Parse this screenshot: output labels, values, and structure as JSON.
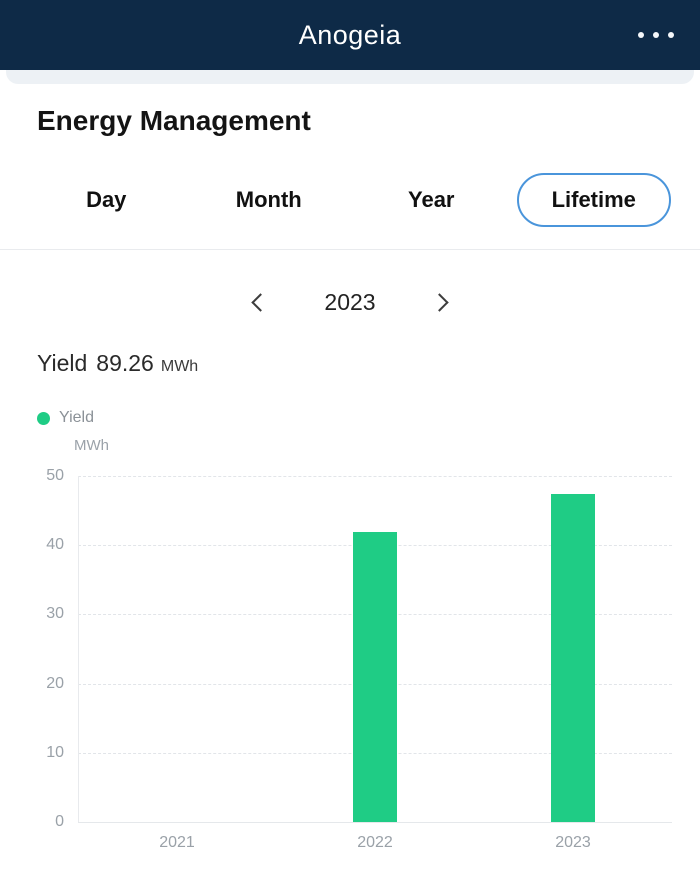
{
  "header": {
    "title": "Anogeia"
  },
  "page": {
    "title": "Energy Management"
  },
  "tabs": {
    "items": [
      {
        "label": "Day",
        "selected": false
      },
      {
        "label": "Month",
        "selected": false
      },
      {
        "label": "Year",
        "selected": false
      },
      {
        "label": "Lifetime",
        "selected": true
      }
    ]
  },
  "year_nav": {
    "value": "2023"
  },
  "summary": {
    "label": "Yield",
    "value": "89.26",
    "unit": "MWh"
  },
  "legend": {
    "items": [
      {
        "label": "Yield",
        "color": "#1fcc85"
      }
    ]
  },
  "chart_data": {
    "type": "bar",
    "title": "",
    "categories": [
      "2021",
      "2022",
      "2023"
    ],
    "series": [
      {
        "name": "Yield",
        "color": "#1fcc85",
        "values": [
          0,
          41.88,
          47.38
        ]
      }
    ],
    "xlabel": "",
    "ylabel": "MWh",
    "ylim": [
      0,
      50
    ],
    "yticks": [
      0,
      10,
      20,
      30,
      40,
      50
    ],
    "grid": "dashed-horizontal",
    "legend_position": "top-left"
  },
  "colors": {
    "header_bg": "#0e2a47",
    "accent_blue": "#4a95db",
    "bar_green": "#1fcc85",
    "axis_text": "#9aa1a8",
    "band_gray": "#edf1f5"
  }
}
